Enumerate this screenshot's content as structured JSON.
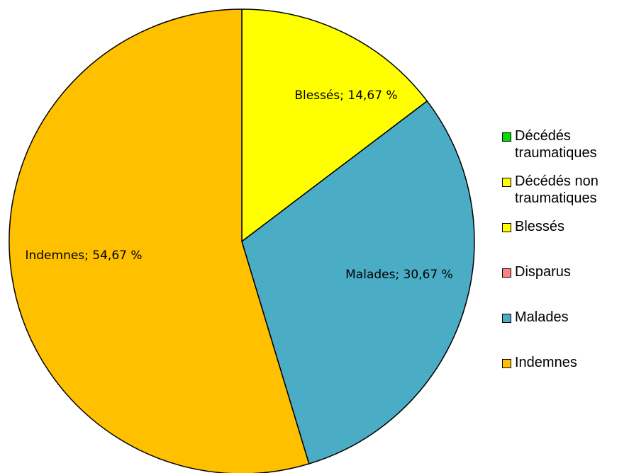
{
  "chart_data": {
    "type": "pie",
    "categories": [
      "Décédés traumatiques",
      "Décédés non traumatiques",
      "Blessés",
      "Disparus",
      "Malades",
      "Indemnes"
    ],
    "values": [
      0,
      0,
      14.67,
      0,
      30.67,
      54.67
    ],
    "value_labels": [
      null,
      null,
      "Blessés; 14,67 %",
      null,
      "Malades; 30,67 %",
      "Indemnes; 54,67 %"
    ],
    "colors": [
      "#00e000",
      "#ffff00",
      "#ffff00",
      "#ff8080",
      "#4bacc6",
      "#ffc000"
    ],
    "legend": "right"
  }
}
